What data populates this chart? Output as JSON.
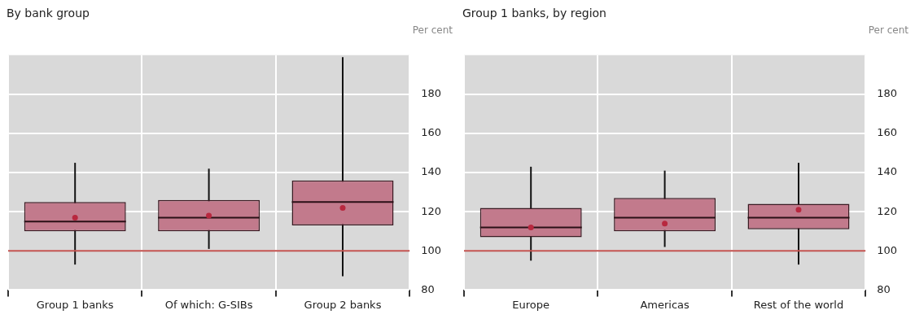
{
  "chart_data": [
    {
      "type": "box",
      "title": "By bank group",
      "ylabel": "Per cent",
      "categories": [
        "Group 1 banks",
        "Of which: G-SIBs",
        "Group 2 banks"
      ],
      "series": [
        {
          "color": "#c27a8c",
          "boxes": [
            {
              "low": 93,
              "q1": 110,
              "median": 115,
              "q3": 125,
              "high": 145,
              "mean": 117
            },
            {
              "low": 101,
              "q1": 110,
              "median": 117,
              "q3": 126,
              "high": 142,
              "mean": 118
            },
            {
              "low": 87,
              "q1": 113,
              "median": 125,
              "q3": 136,
              "high": 199,
              "mean": 122
            }
          ]
        }
      ],
      "ylim": [
        80,
        200
      ],
      "yticks": [
        80,
        100,
        120,
        140,
        160,
        180
      ],
      "grid": true,
      "ref_lines": [
        {
          "axis": "y",
          "value": 100,
          "color": "#c0504d"
        }
      ]
    },
    {
      "type": "box",
      "title": "Group 1 banks, by region",
      "ylabel": "Per cent",
      "categories": [
        "Europe",
        "Americas",
        "Rest of the world"
      ],
      "series": [
        {
          "color": "#c27a8c",
          "boxes": [
            {
              "low": 95,
              "q1": 107,
              "median": 112,
              "q3": 122,
              "high": 143,
              "mean": 112
            },
            {
              "low": 102,
              "q1": 110,
              "median": 117,
              "q3": 127,
              "high": 141,
              "mean": 114
            },
            {
              "low": 93,
              "q1": 111,
              "median": 117,
              "q3": 124,
              "high": 145,
              "mean": 121
            }
          ]
        }
      ],
      "ylim": [
        80,
        200
      ],
      "yticks": [
        80,
        100,
        120,
        140,
        160,
        180
      ],
      "grid": true,
      "ref_lines": [
        {
          "axis": "y",
          "value": 100,
          "color": "#c0504d"
        }
      ]
    }
  ]
}
